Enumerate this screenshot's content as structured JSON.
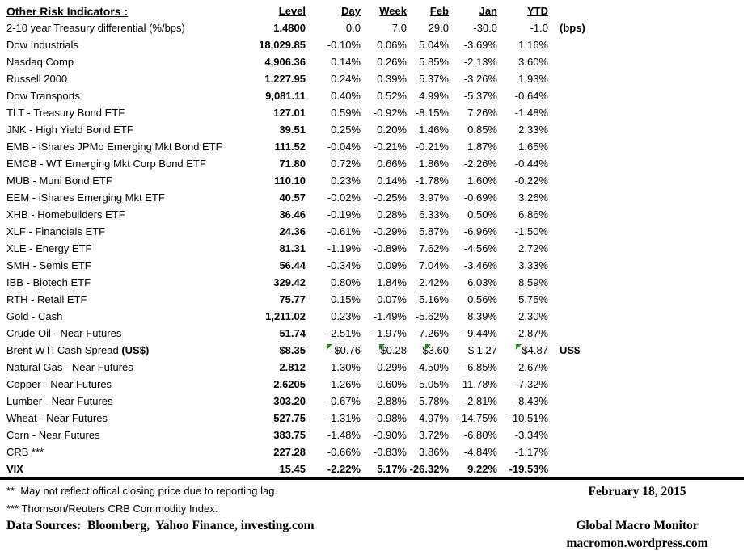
{
  "colors": {
    "marker_green": "#1e8c1e",
    "text": "#000000",
    "background": "#ffffff"
  },
  "table": {
    "title": "Other Risk Indicators :",
    "columns": {
      "level": "Level",
      "day": "Day",
      "week": "Week",
      "feb": "Feb",
      "jan": "Jan",
      "ytd": "YTD"
    },
    "rows": [
      {
        "label": "2-10 year Treasury differential (%/bps)",
        "level": "1.4800",
        "day": "0.0",
        "week": "7.0",
        "feb": "29.0",
        "jan": "-30.0",
        "ytd": "-1.0",
        "note": "(bps)"
      },
      {
        "label": "Dow Industrials",
        "level": "18,029.85",
        "day": "-0.10%",
        "week": "0.06%",
        "feb": "5.04%",
        "jan": "-3.69%",
        "ytd": "1.16%"
      },
      {
        "label": "Nasdaq Comp",
        "level": "4,906.36",
        "day": "0.14%",
        "week": "0.26%",
        "feb": "5.85%",
        "jan": "-2.13%",
        "ytd": "3.60%"
      },
      {
        "label": "Russell 2000",
        "level": "1,227.95",
        "day": "0.24%",
        "week": "0.39%",
        "feb": "5.37%",
        "jan": "-3.26%",
        "ytd": "1.93%"
      },
      {
        "label": "Dow Transports",
        "level": "9,081.11",
        "day": "0.40%",
        "week": "0.52%",
        "feb": "4.99%",
        "jan": "-5.37%",
        "ytd": "-0.64%"
      },
      {
        "label": "TLT - Treasury Bond ETF",
        "level": "127.01",
        "day": "0.59%",
        "week": "-0.92%",
        "feb": "-8.15%",
        "jan": "7.26%",
        "ytd": "-1.48%"
      },
      {
        "label": "JNK - High Yield Bond ETF",
        "level": "39.51",
        "day": "0.25%",
        "week": "0.20%",
        "feb": "1.46%",
        "jan": "0.85%",
        "ytd": "2.33%"
      },
      {
        "label": "EMB - iShares JPMo Emerging Mkt Bond ETF",
        "level": "111.52",
        "day": "-0.04%",
        "week": "-0.21%",
        "feb": "-0.21%",
        "jan": "1.87%",
        "ytd": "1.65%"
      },
      {
        "label": "EMCB - WT Emerging Mkt Corp Bond ETF",
        "level": "71.80",
        "day": "0.72%",
        "week": "0.66%",
        "feb": "1.86%",
        "jan": "-2.26%",
        "ytd": "-0.44%"
      },
      {
        "label": "MUB - Muni Bond ETF",
        "level": "110.10",
        "day": "0.23%",
        "week": "0.14%",
        "feb": "-1.78%",
        "jan": "1.60%",
        "ytd": "-0.22%"
      },
      {
        "label": "EEM - iShares Emerging Mkt ETF",
        "level": "40.57",
        "day": "-0.02%",
        "week": "-0.25%",
        "feb": "3.97%",
        "jan": "-0.69%",
        "ytd": "3.26%"
      },
      {
        "label": "XHB - Homebuilders ETF",
        "level": "36.46",
        "day": "-0.19%",
        "week": "0.28%",
        "feb": "6.33%",
        "jan": "0.50%",
        "ytd": "6.86%"
      },
      {
        "label": "XLF - Financials ETF",
        "level": "24.36",
        "day": "-0.61%",
        "week": "-0.29%",
        "feb": "5.87%",
        "jan": "-6.96%",
        "ytd": "-1.50%"
      },
      {
        "label": "XLE - Energy ETF",
        "level": "81.31",
        "day": "-1.19%",
        "week": "-0.89%",
        "feb": "7.62%",
        "jan": "-4.56%",
        "ytd": "2.72%"
      },
      {
        "label": "SMH - Semis ETF",
        "level": "56.44",
        "day": "-0.34%",
        "week": "0.09%",
        "feb": "7.04%",
        "jan": "-3.46%",
        "ytd": "3.33%"
      },
      {
        "label": "IBB - Biotech ETF",
        "level": "329.42",
        "day": "0.80%",
        "week": "1.84%",
        "feb": "2.42%",
        "jan": "6.03%",
        "ytd": "8.59%"
      },
      {
        "label": "RTH - Retail ETF",
        "level": "75.77",
        "day": "0.15%",
        "week": "0.07%",
        "feb": "5.16%",
        "jan": "0.56%",
        "ytd": "5.75%"
      },
      {
        "label": "Gold - Cash",
        "level": "1,211.02",
        "day": "0.23%",
        "week": "-1.49%",
        "feb": "-5.62%",
        "jan": "8.39%",
        "ytd": "2.30%"
      },
      {
        "label": "Crude Oil - Near Futures",
        "level": "51.74",
        "day": "-2.51%",
        "week": "-1.97%",
        "feb": "7.26%",
        "jan": "-9.44%",
        "ytd": "-2.87%"
      },
      {
        "label": "Brent-WTI Cash Spread ",
        "suffix": "(US$)",
        "level": "$8.35",
        "day": "-$0.76",
        "week": "-$0.28",
        "feb": "$3.60",
        "jan": "$ 1.27",
        "ytd": "$4.87",
        "note": "US$",
        "markers": [
          "day",
          "week",
          "feb",
          "ytd"
        ]
      },
      {
        "label": "Natural Gas - Near Futures",
        "level": "2.812",
        "day": "1.30%",
        "week": "0.29%",
        "feb": "4.50%",
        "jan": "-6.85%",
        "ytd": "-2.67%"
      },
      {
        "label": "Copper - Near Futures",
        "level": "2.6205",
        "day": "1.26%",
        "week": "0.60%",
        "feb": "5.05%",
        "jan": "-11.78%",
        "ytd": "-7.32%"
      },
      {
        "label": "Lumber - Near Futures",
        "level": "303.20",
        "day": "-0.67%",
        "week": "-2.88%",
        "feb": "-5.78%",
        "jan": "-2.81%",
        "ytd": "-8.43%"
      },
      {
        "label": "Wheat - Near Futures",
        "level": "527.75",
        "day": "-1.31%",
        "week": "-0.98%",
        "feb": "4.97%",
        "jan": "-14.75%",
        "ytd": "-10.51%"
      },
      {
        "label": "Corn - Near Futures",
        "level": "383.75",
        "day": "-1.48%",
        "week": "-0.90%",
        "feb": "3.72%",
        "jan": "-6.80%",
        "ytd": "-3.34%"
      },
      {
        "label": "CRB ***",
        "level": "227.28",
        "day": "-0.66%",
        "week": "-0.83%",
        "feb": "3.86%",
        "jan": "-4.84%",
        "ytd": "-1.17%"
      },
      {
        "label": "VIX",
        "bold": true,
        "level": "15.45",
        "day": "-2.22%",
        "week": "5.17%",
        "feb": "-26.32%",
        "jan": "9.22%",
        "ytd": "-19.53%"
      }
    ]
  },
  "footer": {
    "footnote_reporting": "**  May not reflect offical closing price due to reporting lag.",
    "footnote_crb": "*** Thomson/Reuters CRB Commodity Index.",
    "data_sources": "Data Sources:  Bloomberg,  Yahoo Finance, investing.com",
    "date": "February 18, 2015",
    "brand": "Global Macro Monitor",
    "site": "macromon.wordpress.com"
  }
}
